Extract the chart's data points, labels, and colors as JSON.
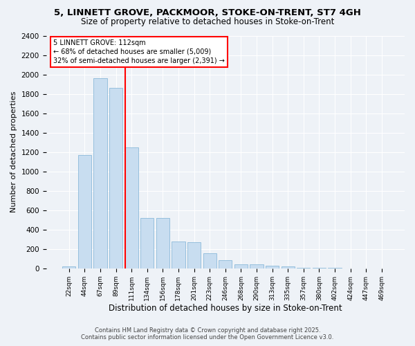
{
  "title": "5, LINNETT GROVE, PACKMOOR, STOKE-ON-TRENT, ST7 4GH",
  "subtitle": "Size of property relative to detached houses in Stoke-on-Trent",
  "xlabel": "Distribution of detached houses by size in Stoke-on-Trent",
  "ylabel": "Number of detached properties",
  "bar_labels": [
    "22sqm",
    "44sqm",
    "67sqm",
    "89sqm",
    "111sqm",
    "134sqm",
    "156sqm",
    "178sqm",
    "201sqm",
    "223sqm",
    "246sqm",
    "268sqm",
    "290sqm",
    "313sqm",
    "335sqm",
    "357sqm",
    "380sqm",
    "402sqm",
    "424sqm",
    "447sqm",
    "469sqm"
  ],
  "bar_values": [
    22,
    1170,
    1960,
    1860,
    1250,
    520,
    520,
    280,
    270,
    155,
    85,
    42,
    42,
    28,
    18,
    5,
    5,
    3,
    1,
    1,
    1
  ],
  "bar_color": "#c8ddf0",
  "bar_edge_color": "#7aafd4",
  "property_line_idx": 4,
  "annotation_title": "5 LINNETT GROVE: 112sqm",
  "annotation_line1": "← 68% of detached houses are smaller (5,009)",
  "annotation_line2": "32% of semi-detached houses are larger (2,391) →",
  "ylim": [
    0,
    2400
  ],
  "yticks": [
    0,
    200,
    400,
    600,
    800,
    1000,
    1200,
    1400,
    1600,
    1800,
    2000,
    2200,
    2400
  ],
  "footnote1": "Contains HM Land Registry data © Crown copyright and database right 2025.",
  "footnote2": "Contains public sector information licensed under the Open Government Licence v3.0.",
  "bg_color": "#eef2f7",
  "plot_bg_color": "#eef2f7",
  "grid_color": "#ffffff"
}
